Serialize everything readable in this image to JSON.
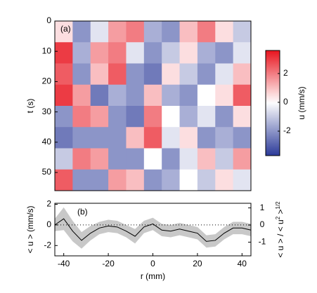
{
  "chart_data": [
    {
      "type": "heatmap",
      "panel_label": "(a)",
      "ylabel": "t (s)",
      "colorbar_label": "u (mm/s)",
      "x": [
        -40,
        -32,
        -24,
        -16,
        -8,
        0,
        8,
        16,
        24,
        32,
        40
      ],
      "y": [
        3.5,
        10.5,
        17.5,
        24.5,
        31.5,
        38.5,
        45.5,
        52.5
      ],
      "z": [
        [
          0.5,
          -2,
          -0.5,
          1.5,
          2,
          -1.5,
          -2,
          1,
          2,
          0.5,
          -1
        ],
        [
          3,
          -1.5,
          1.5,
          2,
          -0.5,
          -2,
          -1,
          0.5,
          -1.5,
          -2,
          -0.5
        ],
        [
          2.5,
          -2,
          1,
          2.5,
          -2,
          -2.5,
          0.5,
          -1,
          -2,
          -0.5,
          1
        ],
        [
          3,
          1.5,
          -2.5,
          -1.5,
          -2,
          1,
          -1.5,
          -2,
          0,
          0.5,
          2.5
        ],
        [
          -2,
          2,
          1.5,
          -2,
          -2.5,
          2,
          0,
          -1.5,
          -0.5,
          -2,
          0.5
        ],
        [
          -2.5,
          -2,
          -2,
          -2,
          1,
          2.5,
          -0.5,
          0.5,
          -2,
          -1.5,
          -2
        ],
        [
          -1,
          2,
          1.5,
          -2,
          -2,
          0,
          -2,
          -0.5,
          1,
          -1,
          1.5
        ],
        [
          2.5,
          -2,
          -2,
          1.5,
          1,
          -2,
          -1.5,
          0,
          -1,
          0.5,
          -0.5
        ]
      ],
      "xlim": [
        -44,
        44
      ],
      "ylim": [
        0,
        56
      ],
      "yticks": [
        0,
        10,
        20,
        30,
        40,
        50
      ],
      "clim": [
        -3.7,
        3.6
      ],
      "cticks": [
        -2,
        0,
        2
      ],
      "colors": [
        "#2b3a99",
        "#ffffff",
        "#e8141e"
      ]
    },
    {
      "type": "line",
      "panel_label": "(b)",
      "xlabel": "r (mm)",
      "ylabel": "< u > (mm/s)",
      "y2label_parts": [
        "< u > / < u",
        "2",
        " >",
        "1/2"
      ],
      "x": [
        -44,
        -40,
        -36,
        -32,
        -28,
        -24,
        -20,
        -16,
        -12,
        -8,
        -4,
        0,
        4,
        8,
        12,
        16,
        20,
        24,
        28,
        32,
        36,
        40,
        44
      ],
      "values": [
        0,
        0.6,
        -0.6,
        -1.5,
        -0.8,
        -0.3,
        -0.1,
        -0.2,
        -0.6,
        -1.1,
        -0.2,
        0.1,
        -0.5,
        -0.6,
        -0.4,
        -0.6,
        -0.8,
        -1.6,
        -1.5,
        -0.8,
        -0.3,
        -0.3,
        -0.5
      ],
      "error": [
        0.6,
        1.1,
        1.0,
        0.8,
        0.7,
        0.6,
        0.6,
        0.6,
        0.6,
        0.7,
        0.6,
        0.6,
        0.6,
        0.6,
        0.6,
        0.6,
        0.6,
        0.6,
        0.6,
        0.6,
        0.6,
        0.6,
        0.6
      ],
      "color": "#000000",
      "band_color": "#c8c8c8",
      "xlim": [
        -44,
        44
      ],
      "xticks": [
        -40,
        -20,
        0,
        20,
        40
      ],
      "ylim": [
        -3,
        2.1
      ],
      "yticks": [
        -2,
        0,
        2
      ],
      "y2lim": [
        -1.8,
        1.27
      ],
      "y2ticks": [
        -1,
        0,
        1
      ]
    }
  ]
}
